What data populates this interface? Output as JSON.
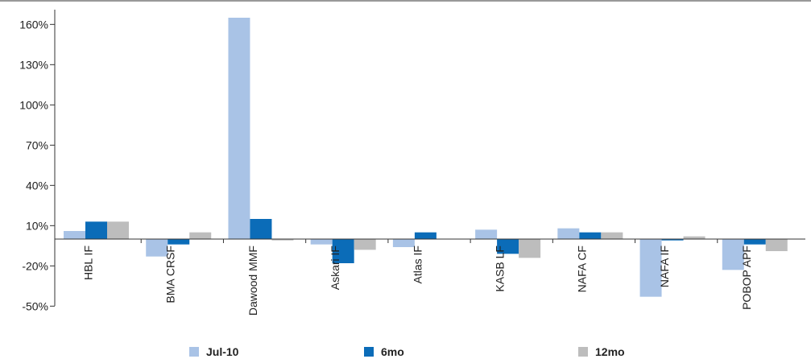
{
  "chart_data": {
    "type": "bar",
    "categories": [
      "HBL IF",
      "BMA CRSF",
      "Dawood MMF",
      "Askari IF",
      "Atlas IF",
      "KASB LF",
      "NAFA CF",
      "NAFA IF",
      "POBOP APF"
    ],
    "series": [
      {
        "name": "Jul-10",
        "color": "#a9c3e6",
        "values": [
          6,
          -13,
          165,
          -4,
          -6,
          7,
          8,
          -43,
          -23
        ]
      },
      {
        "name": "6mo",
        "color": "#0b6cb8",
        "values": [
          13,
          -4,
          15,
          -18,
          5,
          -11,
          5,
          -1,
          -4
        ]
      },
      {
        "name": "12mo",
        "color": "#bdbdbd",
        "values": [
          13,
          5,
          -1,
          -8,
          0,
          -14,
          5,
          2,
          -9
        ]
      }
    ],
    "yticks": [
      "160%",
      "130%",
      "100%",
      "70%",
      "40%",
      "10%",
      "-20%",
      "-50%"
    ],
    "ytick_values": [
      160,
      130,
      100,
      70,
      40,
      10,
      -20,
      -50
    ],
    "ylim": [
      -50,
      170
    ],
    "grid": false,
    "legend_position": "bottom"
  }
}
